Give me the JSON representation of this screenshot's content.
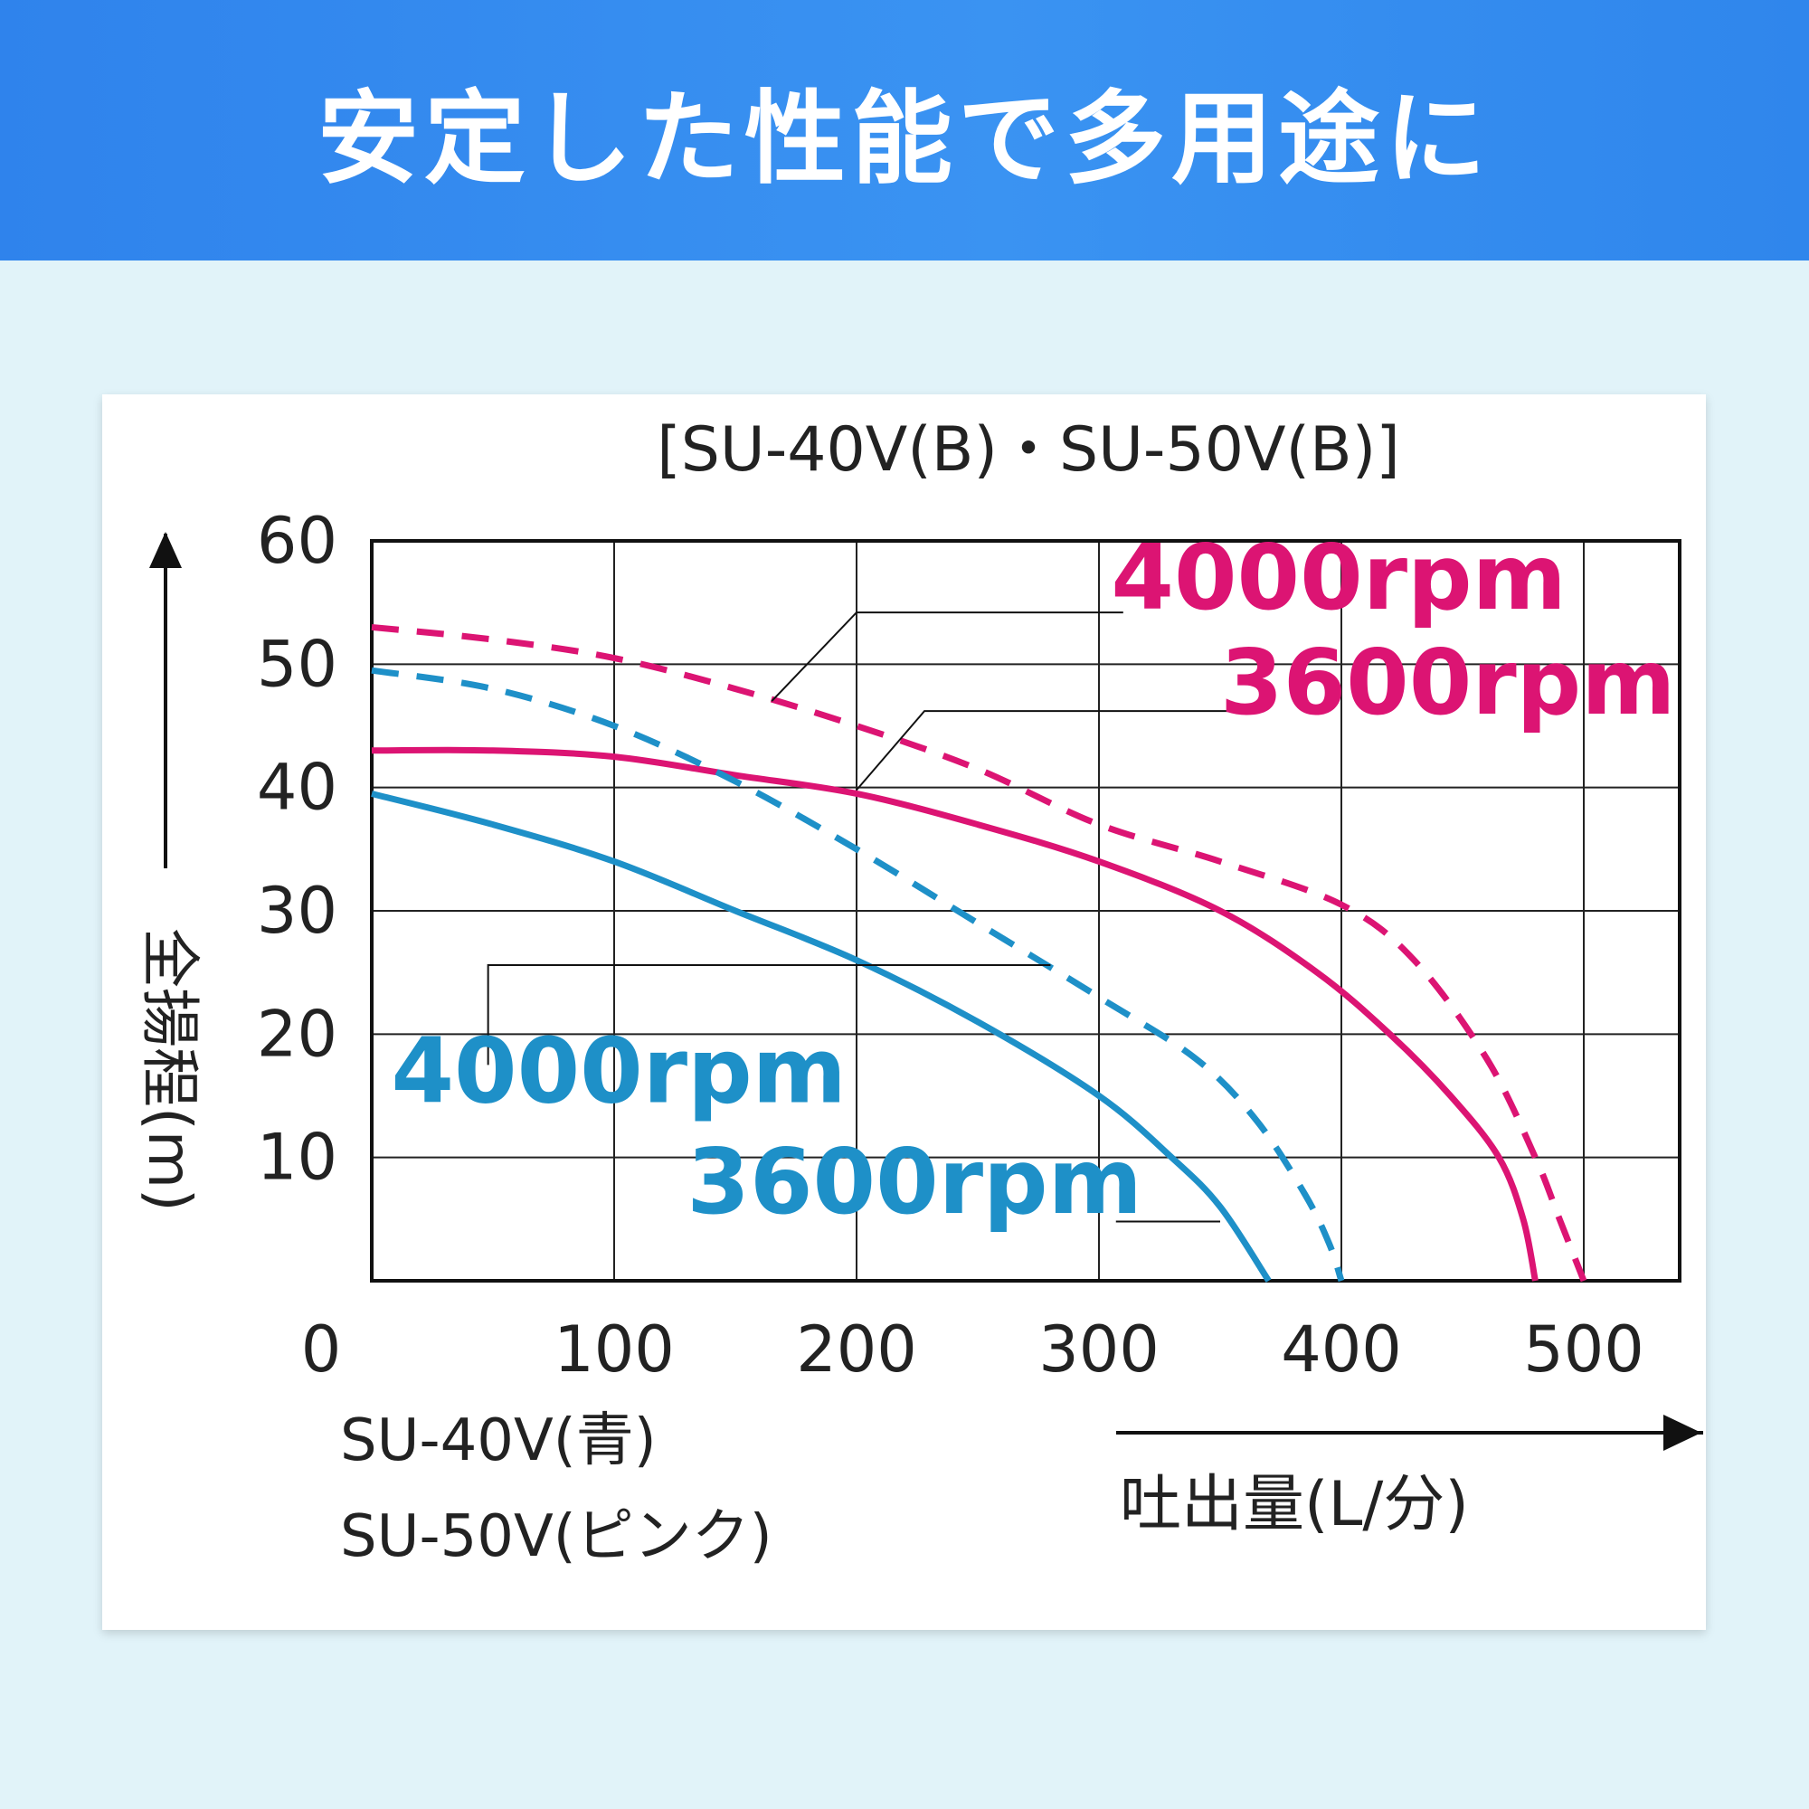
{
  "banner": {
    "title": "安定した性能で多用途に"
  },
  "chart_data": {
    "type": "line",
    "title": "[SU-40V(B)・SU-50V(B)]",
    "xlabel": "吐出量(L/分)",
    "ylabel": "全揚程(m)",
    "xlim": [
      0,
      540
    ],
    "ylim": [
      0,
      60
    ],
    "x_ticks": [
      "0",
      "100",
      "200",
      "300",
      "400",
      "500"
    ],
    "y_ticks": [
      "10",
      "20",
      "30",
      "40",
      "50",
      "60"
    ],
    "grid": true,
    "legend": [
      "SU-40V(青)",
      "SU-50V(ピンク)"
    ],
    "colors": {
      "blue": "#1e90c8",
      "pink": "#dc1473"
    },
    "series": [
      {
        "name": "4000rpm",
        "model": "SU-50V",
        "color": "#dc1473",
        "dash": true,
        "label": "4000rpm",
        "points": [
          [
            0,
            53
          ],
          [
            50,
            52
          ],
          [
            100,
            50.5
          ],
          [
            150,
            48
          ],
          [
            200,
            45
          ],
          [
            250,
            41.5
          ],
          [
            300,
            37
          ],
          [
            350,
            34
          ],
          [
            400,
            30.5
          ],
          [
            430,
            26
          ],
          [
            460,
            18
          ],
          [
            480,
            10
          ],
          [
            490,
            5
          ],
          [
            500,
            0
          ]
        ]
      },
      {
        "name": "3600rpm",
        "model": "SU-50V",
        "color": "#dc1473",
        "dash": false,
        "label": "3600rpm",
        "points": [
          [
            0,
            43
          ],
          [
            50,
            43
          ],
          [
            100,
            42.5
          ],
          [
            150,
            41
          ],
          [
            200,
            39.5
          ],
          [
            250,
            37
          ],
          [
            300,
            34
          ],
          [
            350,
            30
          ],
          [
            390,
            25
          ],
          [
            420,
            20
          ],
          [
            445,
            15
          ],
          [
            465,
            10
          ],
          [
            475,
            5
          ],
          [
            480,
            0
          ]
        ]
      },
      {
        "name": "4000rpm",
        "model": "SU-40V",
        "color": "#1e90c8",
        "dash": true,
        "label": "4000rpm",
        "points": [
          [
            0,
            49.5
          ],
          [
            50,
            48
          ],
          [
            100,
            45
          ],
          [
            150,
            40.5
          ],
          [
            200,
            35
          ],
          [
            250,
            29
          ],
          [
            300,
            23
          ],
          [
            340,
            18
          ],
          [
            365,
            13
          ],
          [
            385,
            7
          ],
          [
            395,
            3
          ],
          [
            400,
            0
          ]
        ]
      },
      {
        "name": "3600rpm",
        "model": "SU-40V",
        "color": "#1e90c8",
        "dash": false,
        "label": "3600rpm",
        "points": [
          [
            0,
            39.5
          ],
          [
            50,
            37
          ],
          [
            100,
            34
          ],
          [
            150,
            30
          ],
          [
            200,
            26
          ],
          [
            250,
            21
          ],
          [
            300,
            15
          ],
          [
            330,
            10
          ],
          [
            350,
            6
          ],
          [
            370,
            0
          ]
        ]
      }
    ],
    "annotations": [
      {
        "text": "4000rpm",
        "color": "#dc1473",
        "x": 305,
        "y": 54.5
      },
      {
        "text": "3600rpm",
        "color": "#dc1473",
        "x": 350,
        "y": 46
      },
      {
        "text": "4000rpm",
        "color": "#1e90c8",
        "x": 8,
        "y": 14.5
      },
      {
        "text": "3600rpm",
        "color": "#1e90c8",
        "x": 130,
        "y": 5.5
      }
    ]
  }
}
